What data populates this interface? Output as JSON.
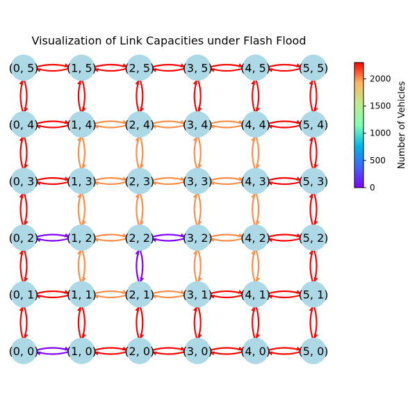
{
  "title": "Visualization of Link Capacities under Flash Flood",
  "colorbar": {
    "label": "Number of Vehicles",
    "min": 0,
    "max": 2300,
    "ticks": [
      "0",
      "500",
      "1000",
      "1500",
      "2000"
    ],
    "tick_values": [
      0,
      500,
      1000,
      1500,
      2000
    ],
    "colormap": "rainbow"
  },
  "colors": {
    "node_fill": "#add8e6",
    "high": "#ff0000",
    "mid": "#ff8c46",
    "low": "#7f00ff"
  },
  "nodes": [
    {
      "label": "(0, 0)",
      "x": 0,
      "y": 0
    },
    {
      "label": "(1, 0)",
      "x": 1,
      "y": 0
    },
    {
      "label": "(2, 0)",
      "x": 2,
      "y": 0
    },
    {
      "label": "(3, 0)",
      "x": 3,
      "y": 0
    },
    {
      "label": "(4, 0)",
      "x": 4,
      "y": 0
    },
    {
      "label": "(5, 0)",
      "x": 5,
      "y": 0
    },
    {
      "label": "(0, 1)",
      "x": 0,
      "y": 1
    },
    {
      "label": "(1, 1)",
      "x": 1,
      "y": 1
    },
    {
      "label": "(2, 1)",
      "x": 2,
      "y": 1
    },
    {
      "label": "(3, 1)",
      "x": 3,
      "y": 1
    },
    {
      "label": "(4, 1)",
      "x": 4,
      "y": 1
    },
    {
      "label": "(5, 1)",
      "x": 5,
      "y": 1
    },
    {
      "label": "(0, 2)",
      "x": 0,
      "y": 2
    },
    {
      "label": "(1, 2)",
      "x": 1,
      "y": 2
    },
    {
      "label": "(2, 2)",
      "x": 2,
      "y": 2
    },
    {
      "label": "(3, 2)",
      "x": 3,
      "y": 2
    },
    {
      "label": "(4, 2)",
      "x": 4,
      "y": 2
    },
    {
      "label": "(5, 2)",
      "x": 5,
      "y": 2
    },
    {
      "label": "(0, 3)",
      "x": 0,
      "y": 3
    },
    {
      "label": "(1, 3)",
      "x": 1,
      "y": 3
    },
    {
      "label": "(2, 3)",
      "x": 2,
      "y": 3
    },
    {
      "label": "(3, 3)",
      "x": 3,
      "y": 3
    },
    {
      "label": "(4, 3)",
      "x": 4,
      "y": 3
    },
    {
      "label": "(5, 3)",
      "x": 5,
      "y": 3
    },
    {
      "label": "(0, 4)",
      "x": 0,
      "y": 4
    },
    {
      "label": "(1, 4)",
      "x": 1,
      "y": 4
    },
    {
      "label": "(2, 4)",
      "x": 2,
      "y": 4
    },
    {
      "label": "(3, 4)",
      "x": 3,
      "y": 4
    },
    {
      "label": "(4, 4)",
      "x": 4,
      "y": 4
    },
    {
      "label": "(5, 4)",
      "x": 5,
      "y": 4
    },
    {
      "label": "(0, 5)",
      "x": 0,
      "y": 5
    },
    {
      "label": "(1, 5)",
      "x": 1,
      "y": 5
    },
    {
      "label": "(2, 5)",
      "x": 2,
      "y": 5
    },
    {
      "label": "(3, 5)",
      "x": 3,
      "y": 5
    },
    {
      "label": "(4, 5)",
      "x": 4,
      "y": 5
    },
    {
      "label": "(5, 5)",
      "x": 5,
      "y": 5
    }
  ],
  "links": {
    "horizontal": [
      [
        "low",
        "high",
        "high",
        "high",
        "high"
      ],
      [
        "high",
        "mid",
        "mid",
        "high",
        "high"
      ],
      [
        "low",
        "mid",
        "low",
        "mid",
        "high"
      ],
      [
        "high",
        "mid",
        "mid",
        "mid",
        "high"
      ],
      [
        "high",
        "mid",
        "mid",
        "mid",
        "high"
      ],
      [
        "high",
        "high",
        "high",
        "high",
        "high"
      ]
    ],
    "vertical": [
      [
        "high",
        "high",
        "high",
        "high",
        "high",
        "high"
      ],
      [
        "high",
        "mid",
        "low",
        "mid",
        "mid",
        "high"
      ],
      [
        "high",
        "mid",
        "mid",
        "mid",
        "mid",
        "high"
      ],
      [
        "high",
        "mid",
        "mid",
        "mid",
        "mid",
        "high"
      ],
      [
        "high",
        "high",
        "high",
        "high",
        "high",
        "high"
      ]
    ]
  }
}
